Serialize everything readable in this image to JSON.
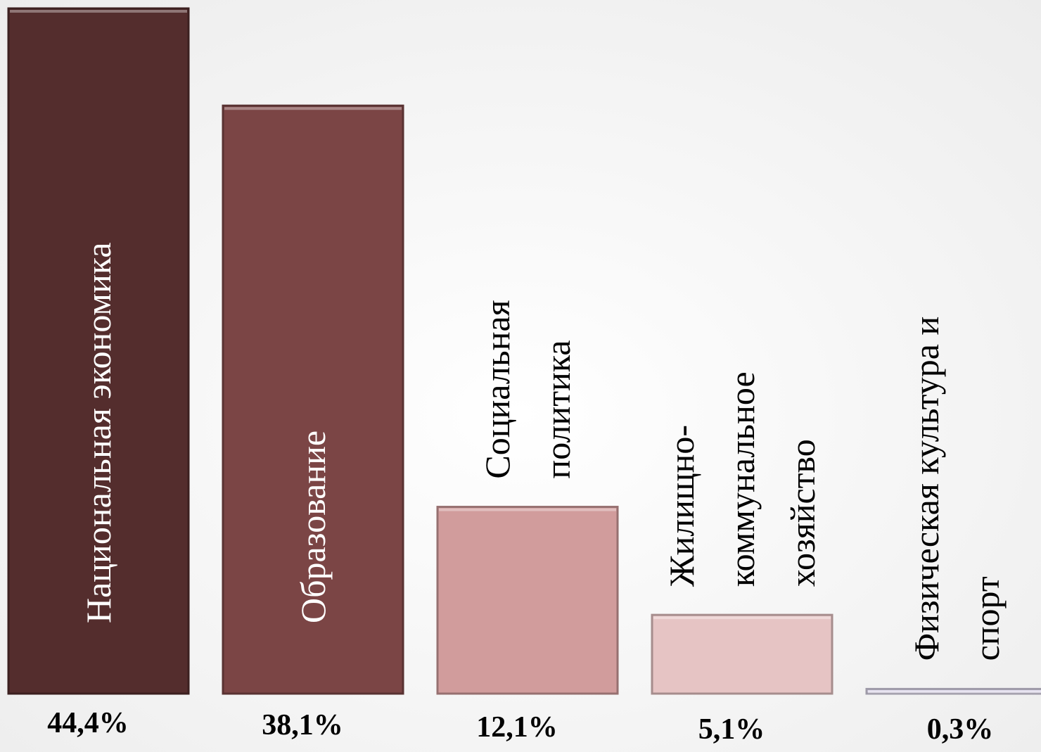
{
  "chart_data": {
    "type": "bar",
    "categories": [
      [
        "Национальная экономика"
      ],
      [
        "Образование"
      ],
      [
        "Социальная",
        "политика"
      ],
      [
        "Жилищно-",
        "коммунальное",
        "хозяйство"
      ],
      [
        "Физическая культура и",
        "спорт"
      ]
    ],
    "values": [
      44.4,
      38.1,
      12.1,
      5.1,
      0.3
    ],
    "value_labels": [
      "44,4%",
      "38,1%",
      "12,1%",
      "5,1%",
      "0,3%"
    ],
    "bar_colors": [
      "#542d2d",
      "#7b4545",
      "#d19c9c",
      "#e6c4c4",
      "#dcd6ea"
    ],
    "category_label_colors": [
      "#ffffff",
      "#ffffff",
      "#000000",
      "#000000",
      "#000000"
    ],
    "category_label_orientation": "vertical",
    "ylim": [
      0,
      44.4
    ],
    "grid": false,
    "legend": "none",
    "title": "",
    "xlabel": "",
    "ylabel": ""
  }
}
